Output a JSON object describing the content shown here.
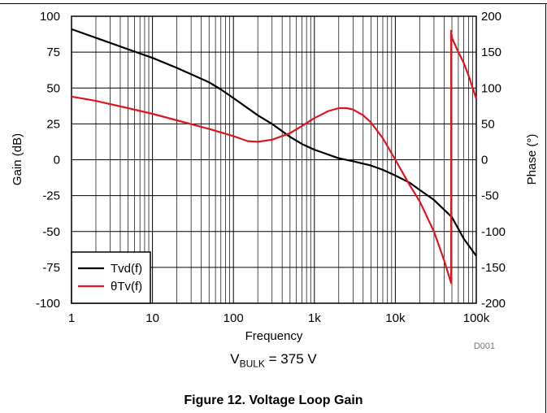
{
  "chart_data": {
    "type": "line",
    "xlabel": "Frequency",
    "ylabel_left": "Gain (dB)",
    "ylabel_right": "Phase (°)",
    "x_scale": "log",
    "xlim": [
      1,
      100000
    ],
    "ylim_left": [
      -100,
      100
    ],
    "ylim_right": [
      -200,
      200
    ],
    "x_tick_values": [
      1,
      10,
      100,
      1000,
      10000,
      100000
    ],
    "x_tick_labels": [
      "1",
      "10",
      "100",
      "1k",
      "10k",
      "100k"
    ],
    "y_left_ticks": [
      100,
      75,
      50,
      25,
      0,
      -25,
      -50,
      -75,
      -100
    ],
    "y_left_tick_labels": [
      "100",
      "75",
      "50",
      "25",
      "0",
      "-25",
      "-50",
      "-75",
      "-100"
    ],
    "y_right_ticks": [
      200,
      150,
      100,
      50,
      0,
      -50,
      -100,
      -150,
      -200
    ],
    "y_right_tick_labels": [
      "200",
      "150",
      "100",
      "50",
      "0",
      "-50",
      "-100",
      "-150",
      "-200"
    ],
    "grid": true,
    "legend_position": "bottom-left",
    "note": "D001",
    "series": [
      {
        "name": "Tvd(f)",
        "axis": "left",
        "color": "#000000",
        "x": [
          1,
          2,
          5,
          10,
          20,
          50,
          70,
          100,
          200,
          300,
          500,
          700,
          1000,
          2000,
          3000,
          5000,
          7000,
          10000,
          15000,
          20000,
          30000,
          50000,
          70000,
          100000
        ],
        "y": [
          91,
          85,
          77,
          71,
          64,
          54,
          49,
          43,
          31,
          25,
          16,
          11,
          7,
          1,
          -1,
          -4,
          -7,
          -11,
          -16,
          -21,
          -28,
          -40,
          -55,
          -67
        ]
      },
      {
        "name": "θTv(f)",
        "axis": "right",
        "color": "#e0141e",
        "x": [
          1,
          2,
          5,
          10,
          20,
          50,
          100,
          150,
          200,
          300,
          500,
          700,
          1000,
          1500,
          2000,
          2500,
          3000,
          4000,
          5000,
          7000,
          10000,
          15000,
          20000,
          30000,
          40000,
          49000,
          49000,
          50000,
          60000,
          70000,
          80000,
          100000
        ],
        "y": [
          88,
          82,
          72,
          64,
          55,
          43,
          33,
          26,
          25,
          28,
          37,
          47,
          58,
          68,
          72,
          72,
          70,
          62,
          52,
          30,
          0,
          -35,
          -58,
          -100,
          -140,
          -172,
          180,
          170,
          150,
          135,
          118,
          85
        ]
      }
    ]
  },
  "caption": {
    "subtitle_prefix": "V",
    "subtitle_sub": "BULK",
    "subtitle_rest": " = 375 V",
    "figure_title": "Figure 12. Voltage Loop Gain"
  }
}
